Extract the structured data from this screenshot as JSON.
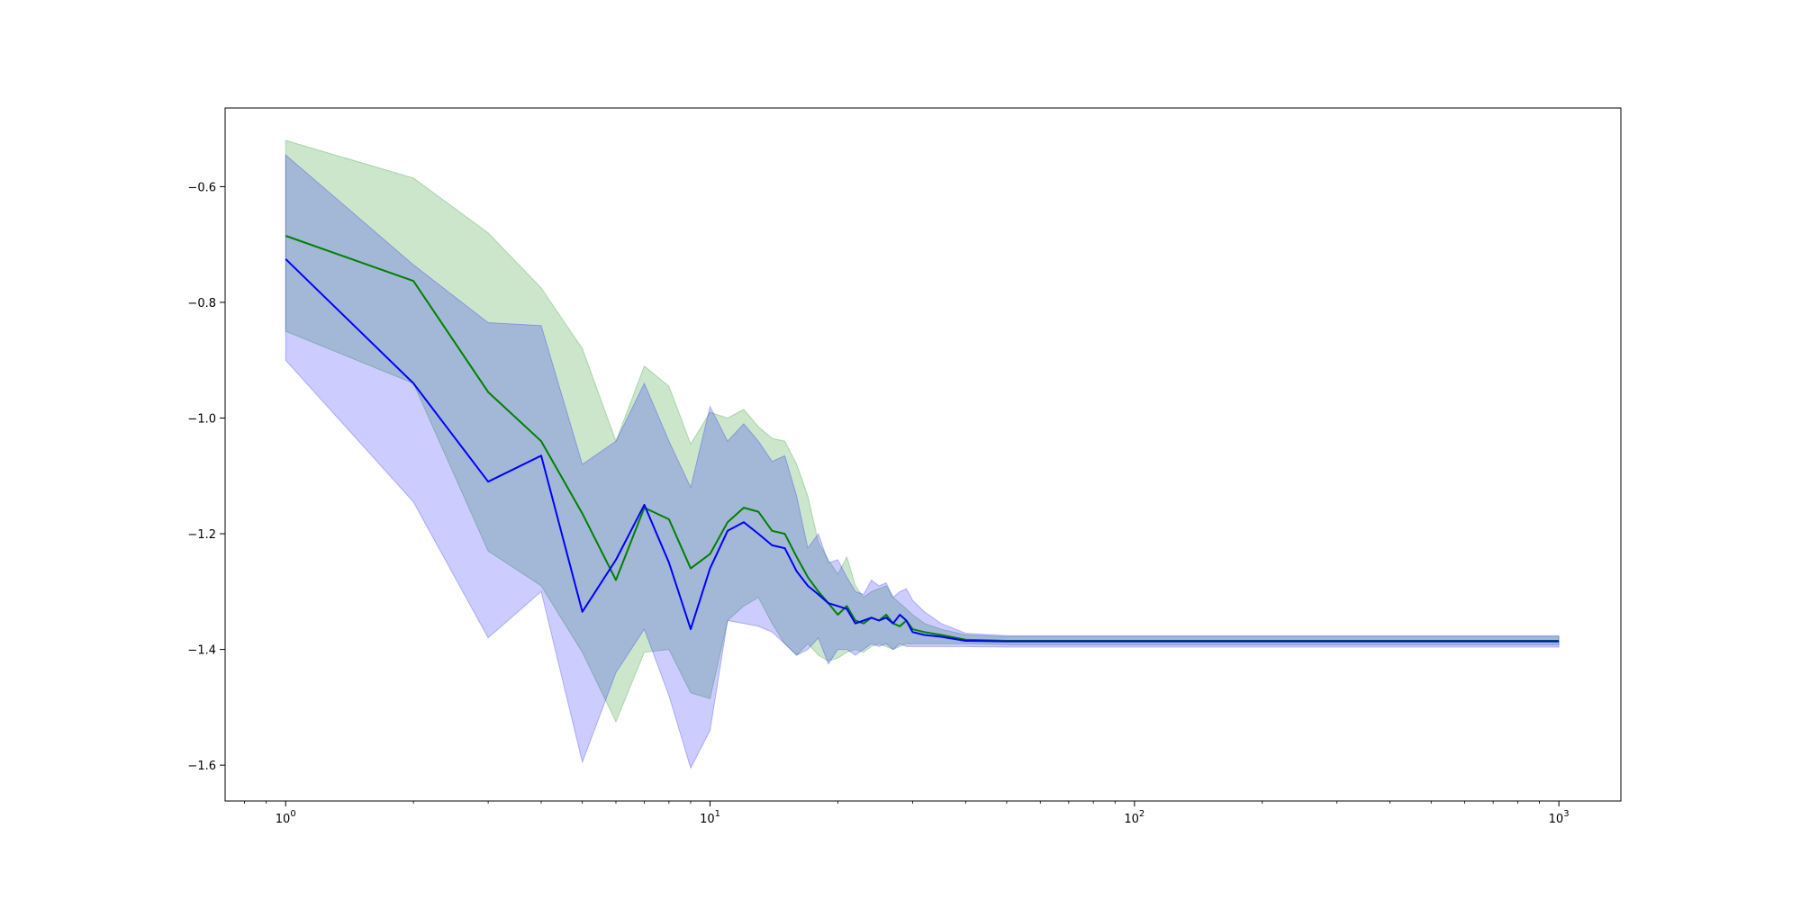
{
  "chart_data": {
    "type": "line",
    "title": "",
    "xlabel": "",
    "ylabel": "",
    "xscale": "log",
    "xlim": [
      0.72,
      1400
    ],
    "ylim": [
      -1.662,
      -0.464
    ],
    "grid": false,
    "legend": "none",
    "x_ticks": [
      {
        "value": 1,
        "base": "10",
        "exp": "0"
      },
      {
        "value": 10,
        "base": "10",
        "exp": "1"
      },
      {
        "value": 100,
        "base": "10",
        "exp": "2"
      },
      {
        "value": 1000,
        "base": "10",
        "exp": "3"
      }
    ],
    "y_ticks": [
      {
        "value": -0.6,
        "label": "−0.6"
      },
      {
        "value": -0.8,
        "label": "−0.8"
      },
      {
        "value": -1.0,
        "label": "−1.0"
      },
      {
        "value": -1.2,
        "label": "−1.2"
      },
      {
        "value": -1.4,
        "label": "−1.4"
      },
      {
        "value": -1.6,
        "label": "−1.6"
      }
    ],
    "series": [
      {
        "color": "#008000",
        "band_color": "#008000",
        "band_opacity": 0.2,
        "x": [
          1,
          2,
          3,
          4,
          5,
          6,
          7,
          8,
          9,
          10,
          11,
          12,
          13,
          14,
          15,
          16,
          17,
          18,
          19,
          20,
          21,
          22,
          23,
          24,
          25,
          26,
          27,
          28,
          29,
          30,
          32,
          35,
          40,
          50,
          70,
          100,
          150,
          200,
          300,
          500,
          700,
          1000
        ],
        "values": [
          -0.685,
          -0.763,
          -0.955,
          -1.04,
          -1.165,
          -1.28,
          -1.155,
          -1.175,
          -1.26,
          -1.235,
          -1.18,
          -1.155,
          -1.162,
          -1.195,
          -1.2,
          -1.24,
          -1.275,
          -1.3,
          -1.32,
          -1.34,
          -1.325,
          -1.35,
          -1.355,
          -1.345,
          -1.35,
          -1.34,
          -1.355,
          -1.36,
          -1.35,
          -1.365,
          -1.37,
          -1.375,
          -1.383,
          -1.385,
          -1.385,
          -1.385,
          -1.385,
          -1.385,
          -1.385,
          -1.385,
          -1.385,
          -1.385
        ],
        "upper": [
          -0.52,
          -0.585,
          -0.68,
          -0.775,
          -0.88,
          -1.04,
          -0.91,
          -0.945,
          -1.045,
          -0.99,
          -1.0,
          -0.985,
          -1.015,
          -1.035,
          -1.04,
          -1.08,
          -1.135,
          -1.215,
          -1.245,
          -1.27,
          -1.24,
          -1.29,
          -1.31,
          -1.3,
          -1.295,
          -1.29,
          -1.31,
          -1.32,
          -1.33,
          -1.34,
          -1.355,
          -1.365,
          -1.375,
          -1.378,
          -1.378,
          -1.378,
          -1.378,
          -1.378,
          -1.378,
          -1.378,
          -1.378,
          -1.378
        ],
        "lower": [
          -0.85,
          -0.94,
          -1.23,
          -1.29,
          -1.405,
          -1.525,
          -1.405,
          -1.4,
          -1.475,
          -1.485,
          -1.35,
          -1.325,
          -1.31,
          -1.355,
          -1.39,
          -1.41,
          -1.39,
          -1.41,
          -1.42,
          -1.415,
          -1.405,
          -1.4,
          -1.405,
          -1.395,
          -1.39,
          -1.395,
          -1.4,
          -1.395,
          -1.39,
          -1.39,
          -1.39,
          -1.39,
          -1.39,
          -1.392,
          -1.392,
          -1.392,
          -1.392,
          -1.392,
          -1.392,
          -1.392,
          -1.392,
          -1.392
        ]
      },
      {
        "color": "#0000ff",
        "band_color": "#0000ff",
        "band_opacity": 0.2,
        "x": [
          1,
          2,
          3,
          4,
          5,
          6,
          7,
          8,
          9,
          10,
          11,
          12,
          13,
          14,
          15,
          16,
          17,
          18,
          19,
          20,
          21,
          22,
          23,
          24,
          25,
          26,
          27,
          28,
          29,
          30,
          32,
          35,
          40,
          50,
          70,
          100,
          150,
          200,
          300,
          500,
          700,
          1000
        ],
        "values": [
          -0.725,
          -0.94,
          -1.11,
          -1.065,
          -1.335,
          -1.245,
          -1.15,
          -1.25,
          -1.365,
          -1.26,
          -1.195,
          -1.18,
          -1.2,
          -1.22,
          -1.225,
          -1.265,
          -1.29,
          -1.305,
          -1.32,
          -1.325,
          -1.33,
          -1.355,
          -1.35,
          -1.345,
          -1.35,
          -1.345,
          -1.355,
          -1.34,
          -1.35,
          -1.37,
          -1.375,
          -1.378,
          -1.385,
          -1.386,
          -1.386,
          -1.386,
          -1.386,
          -1.386,
          -1.386,
          -1.386,
          -1.386,
          -1.386
        ],
        "upper": [
          -0.545,
          -0.735,
          -0.835,
          -0.84,
          -1.08,
          -1.04,
          -0.94,
          -1.04,
          -1.12,
          -0.98,
          -1.04,
          -1.01,
          -1.04,
          -1.075,
          -1.065,
          -1.135,
          -1.225,
          -1.2,
          -1.25,
          -1.245,
          -1.275,
          -1.3,
          -1.305,
          -1.28,
          -1.29,
          -1.285,
          -1.31,
          -1.3,
          -1.295,
          -1.315,
          -1.335,
          -1.355,
          -1.372,
          -1.376,
          -1.376,
          -1.376,
          -1.376,
          -1.376,
          -1.376,
          -1.376,
          -1.376,
          -1.376
        ],
        "lower": [
          -0.9,
          -1.145,
          -1.38,
          -1.3,
          -1.595,
          -1.44,
          -1.365,
          -1.48,
          -1.605,
          -1.54,
          -1.35,
          -1.355,
          -1.36,
          -1.37,
          -1.39,
          -1.41,
          -1.4,
          -1.38,
          -1.425,
          -1.4,
          -1.4,
          -1.41,
          -1.4,
          -1.39,
          -1.395,
          -1.39,
          -1.4,
          -1.39,
          -1.395,
          -1.395,
          -1.395,
          -1.395,
          -1.395,
          -1.396,
          -1.396,
          -1.396,
          -1.396,
          -1.396,
          -1.396,
          -1.396,
          -1.396,
          -1.396
        ]
      }
    ]
  }
}
